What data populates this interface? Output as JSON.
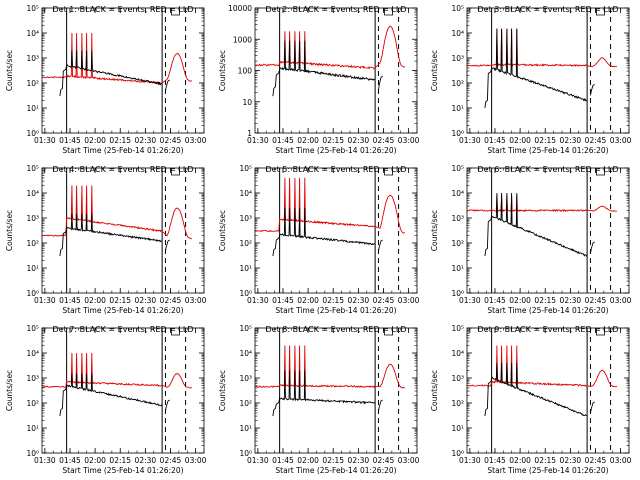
{
  "page": {
    "background": "#ffffff"
  },
  "colors": {
    "events": "#000000",
    "lld": "#e00000"
  },
  "chart_data": [
    {
      "type": "line",
      "title": "Det 1: BLACK = Events, RED = LLD",
      "xlabel": "Start Time (25-Feb-14 01:26:20)",
      "ylabel": "Counts/sec",
      "log_y": true,
      "ylim": [
        1,
        100000
      ],
      "y_ticks": [
        "10⁰",
        "10¹",
        "10²",
        "10³",
        "10⁴",
        "10⁵"
      ],
      "x_ticks": [
        "01:30",
        "01:45",
        "02:00",
        "02:15",
        "02:30",
        "02:45",
        "03:00"
      ],
      "vlines_solid": [
        "01:43",
        "02:40"
      ],
      "vlines_dashed": [
        "02:42",
        "02:54"
      ],
      "marker_time": "02:48",
      "series": [
        {
          "name": "Events",
          "color": "#000000",
          "base_start": 500,
          "base_end": 90,
          "spikes": [
            2000,
            2000,
            2000,
            2000,
            2000
          ],
          "segment_start": 30,
          "recovery": 120
        },
        {
          "name": "LLD",
          "color": "#e00000",
          "base_start": 190,
          "base_end": 100,
          "spikes": [
            10000,
            10000,
            10000,
            10000,
            10000
          ],
          "pre": 170,
          "hump": 1500,
          "tail": 120
        }
      ]
    },
    {
      "type": "line",
      "title": "Det 2: BLACK = Events, RED = LLD",
      "xlabel": "Start Time (25-Feb-14 01:26:20)",
      "ylabel": "Counts/sec",
      "log_y": true,
      "ylim": [
        1,
        10000
      ],
      "y_ticks": [
        "1",
        "10",
        "100",
        "1000",
        "10000"
      ],
      "x_ticks": [
        "01:30",
        "01:45",
        "02:00",
        "02:15",
        "02:30",
        "02:45",
        "03:00"
      ],
      "vlines_solid": [
        "01:43",
        "02:40"
      ],
      "vlines_dashed": [
        "02:42",
        "02:54"
      ],
      "marker_time": "02:48",
      "series": [
        {
          "name": "Events",
          "color": "#000000",
          "base_start": 120,
          "base_end": 50,
          "spikes": [
            900,
            900,
            900,
            900,
            900
          ],
          "segment_start": 15,
          "recovery": 60
        },
        {
          "name": "LLD",
          "color": "#e00000",
          "base_start": 190,
          "base_end": 120,
          "spikes": [
            1800,
            1800,
            1800,
            1800,
            1800
          ],
          "pre": 150,
          "hump": 2600,
          "tail": 130
        }
      ]
    },
    {
      "type": "line",
      "title": "Det 3: BLACK = Events, RED = LLD",
      "xlabel": "Start Time (25-Feb-14 01:26:20)",
      "ylabel": "Counts/sec",
      "log_y": true,
      "ylim": [
        1,
        100000
      ],
      "y_ticks": [
        "10⁰",
        "10¹",
        "10²",
        "10³",
        "10⁴",
        "10⁵"
      ],
      "x_ticks": [
        "01:30",
        "01:45",
        "02:00",
        "02:15",
        "02:30",
        "02:45",
        "03:00"
      ],
      "vlines_solid": [
        "01:43",
        "02:40"
      ],
      "vlines_dashed": [
        "02:42",
        "02:54"
      ],
      "marker_time": "02:48",
      "series": [
        {
          "name": "Events",
          "color": "#000000",
          "base_start": 400,
          "base_end": 20,
          "spikes": [
            15000,
            15000,
            15000,
            15000,
            15000
          ],
          "segment_start": 10,
          "recovery": 80
        },
        {
          "name": "LLD",
          "color": "#e00000",
          "base_start": 550,
          "base_end": 500,
          "spikes": [
            15000,
            15000,
            15000,
            15000,
            15000
          ],
          "pre": 500,
          "hump": 1000,
          "tail": 450
        }
      ]
    },
    {
      "type": "line",
      "title": "Det 4: BLACK = Events, RED = LLD",
      "xlabel": "Start Time (25-Feb-14 01:26:20)",
      "ylabel": "Counts/sec",
      "log_y": true,
      "ylim": [
        1,
        100000
      ],
      "y_ticks": [
        "10⁰",
        "10¹",
        "10²",
        "10³",
        "10⁴",
        "10⁵"
      ],
      "x_ticks": [
        "01:30",
        "01:45",
        "02:00",
        "02:15",
        "02:30",
        "02:45",
        "03:00"
      ],
      "vlines_solid": [
        "01:43",
        "02:40"
      ],
      "vlines_dashed": [
        "02:42",
        "02:54"
      ],
      "marker_time": "02:48",
      "series": [
        {
          "name": "Events",
          "color": "#000000",
          "base_start": 400,
          "base_end": 120,
          "spikes": [
            1500,
            1500,
            1500,
            1500,
            1500
          ],
          "segment_start": 30,
          "recovery": 120
        },
        {
          "name": "LLD",
          "color": "#e00000",
          "base_start": 1000,
          "base_end": 300,
          "spikes": [
            20000,
            20000,
            20000,
            20000,
            20000
          ],
          "pre": 200,
          "hump": 2500,
          "tail": 150
        }
      ]
    },
    {
      "type": "line",
      "title": "Det 5: BLACK = Events, RED = LLD",
      "xlabel": "Start Time (25-Feb-14 01:26:20)",
      "ylabel": "Counts/sec",
      "log_y": true,
      "ylim": [
        1,
        100000
      ],
      "y_ticks": [
        "10⁰",
        "10¹",
        "10²",
        "10³",
        "10⁴",
        "10⁵"
      ],
      "x_ticks": [
        "01:30",
        "01:45",
        "02:00",
        "02:15",
        "02:30",
        "02:45",
        "03:00"
      ],
      "vlines_solid": [
        "01:43",
        "02:40"
      ],
      "vlines_dashed": [
        "02:42",
        "02:54"
      ],
      "marker_time": "02:48",
      "series": [
        {
          "name": "Events",
          "color": "#000000",
          "base_start": 220,
          "base_end": 90,
          "spikes": [
            2500,
            2500,
            2500,
            2500,
            2500
          ],
          "segment_start": 30,
          "recovery": 120
        },
        {
          "name": "LLD",
          "color": "#e00000",
          "base_start": 900,
          "base_end": 450,
          "spikes": [
            40000,
            40000,
            40000,
            40000,
            40000
          ],
          "pre": 300,
          "hump": 8000,
          "tail": 250
        }
      ]
    },
    {
      "type": "line",
      "title": "Det 6: BLACK = Events, RED = LLD",
      "xlabel": "Start Time (25-Feb-14 01:26:20)",
      "ylabel": "Counts/sec",
      "log_y": true,
      "ylim": [
        1,
        100000
      ],
      "y_ticks": [
        "10⁰",
        "10¹",
        "10²",
        "10³",
        "10⁴",
        "10⁵"
      ],
      "x_ticks": [
        "01:30",
        "01:45",
        "02:00",
        "02:15",
        "02:30",
        "02:45",
        "03:00"
      ],
      "vlines_solid": [
        "01:43",
        "02:40"
      ],
      "vlines_dashed": [
        "02:42",
        "02:54"
      ],
      "marker_time": "02:48",
      "series": [
        {
          "name": "Events",
          "color": "#000000",
          "base_start": 1200,
          "base_end": 30,
          "spikes": [
            10000,
            10000,
            10000,
            10000,
            10000
          ],
          "segment_start": 30,
          "recovery": 100
        },
        {
          "name": "LLD",
          "color": "#e00000",
          "base_start": 2000,
          "base_end": 2000,
          "spikes": [
            8000,
            8000,
            8000,
            8000,
            8000
          ],
          "pre": 2000,
          "hump": 3000,
          "tail": 1900
        }
      ]
    },
    {
      "type": "line",
      "title": "Det 7: BLACK = Events, RED = LLD",
      "xlabel": "Start Time (25-Feb-14 01:26:20)",
      "ylabel": "Counts/sec",
      "log_y": true,
      "ylim": [
        1,
        100000
      ],
      "y_ticks": [
        "10⁰",
        "10¹",
        "10²",
        "10³",
        "10⁴",
        "10⁵"
      ],
      "x_ticks": [
        "01:30",
        "01:45",
        "02:00",
        "02:15",
        "02:30",
        "02:45",
        "03:00"
      ],
      "vlines_solid": [
        "01:43",
        "02:40"
      ],
      "vlines_dashed": [
        "02:42",
        "02:54"
      ],
      "marker_time": "02:48",
      "series": [
        {
          "name": "Events",
          "color": "#000000",
          "base_start": 500,
          "base_end": 80,
          "spikes": [
            1500,
            1500,
            1500,
            1500,
            1500
          ],
          "segment_start": 30,
          "recovery": 120
        },
        {
          "name": "LLD",
          "color": "#e00000",
          "base_start": 700,
          "base_end": 500,
          "spikes": [
            10000,
            10000,
            10000,
            10000,
            10000
          ],
          "pre": 450,
          "hump": 1500,
          "tail": 400
        }
      ]
    },
    {
      "type": "line",
      "title": "Det 8: BLACK = Events, RED = LLD",
      "xlabel": "Start Time (25-Feb-14 01:26:20)",
      "ylabel": "Counts/sec",
      "log_y": true,
      "ylim": [
        1,
        100000
      ],
      "y_ticks": [
        "10⁰",
        "10¹",
        "10²",
        "10³",
        "10⁴",
        "10⁵"
      ],
      "x_ticks": [
        "01:30",
        "01:45",
        "02:00",
        "02:15",
        "02:30",
        "02:45",
        "03:00"
      ],
      "vlines_solid": [
        "01:43",
        "02:40"
      ],
      "vlines_dashed": [
        "02:42",
        "02:54"
      ],
      "marker_time": "02:48",
      "series": [
        {
          "name": "Events",
          "color": "#000000",
          "base_start": 150,
          "base_end": 100,
          "spikes": [
            2000,
            2000,
            2000,
            2000,
            2000
          ],
          "segment_start": 30,
          "recovery": 120
        },
        {
          "name": "LLD",
          "color": "#e00000",
          "base_start": 500,
          "base_end": 450,
          "spikes": [
            20000,
            20000,
            20000,
            20000,
            20000
          ],
          "pre": 450,
          "hump": 3500,
          "tail": 400
        }
      ]
    },
    {
      "type": "line",
      "title": "Det 9: BLACK = Events, RED = LLD",
      "xlabel": "Start Time (25-Feb-14 01:26:20)",
      "ylabel": "Counts/sec",
      "log_y": true,
      "ylim": [
        1,
        100000
      ],
      "y_ticks": [
        "10⁰",
        "10¹",
        "10²",
        "10³",
        "10⁴",
        "10⁵"
      ],
      "x_ticks": [
        "01:30",
        "01:45",
        "02:00",
        "02:15",
        "02:30",
        "02:45",
        "03:00"
      ],
      "vlines_solid": [
        "01:43",
        "02:40"
      ],
      "vlines_dashed": [
        "02:42",
        "02:54"
      ],
      "marker_time": "02:48",
      "series": [
        {
          "name": "Events",
          "color": "#000000",
          "base_start": 1000,
          "base_end": 30,
          "spikes": [
            4000,
            4000,
            4000,
            4000,
            4000
          ],
          "segment_start": 30,
          "recovery": 100
        },
        {
          "name": "LLD",
          "color": "#e00000",
          "base_start": 700,
          "base_end": 500,
          "spikes": [
            20000,
            20000,
            20000,
            20000,
            20000
          ],
          "pre": 500,
          "hump": 2000,
          "tail": 450
        }
      ]
    }
  ]
}
